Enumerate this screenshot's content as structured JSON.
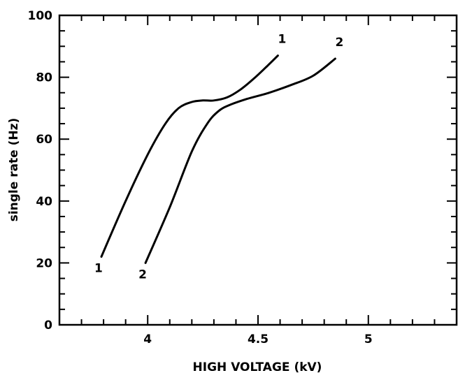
{
  "chart_data": {
    "type": "line",
    "title": "",
    "xlabel": "HIGH VOLTAGE (kV)",
    "ylabel": "single rate (Hz)",
    "xlim": [
      3.6,
      5.4
    ],
    "ylim": [
      0,
      100
    ],
    "x_ticks": [
      4,
      4.5,
      5
    ],
    "x_tick_labels": [
      "4",
      "4.5",
      "5"
    ],
    "y_ticks": [
      0,
      20,
      40,
      60,
      80,
      100
    ],
    "y_tick_labels": [
      "0",
      "20",
      "40",
      "60",
      "80",
      "100"
    ],
    "grid": false,
    "series": [
      {
        "name": "1",
        "x": [
          3.79,
          3.9,
          4.0,
          4.08,
          4.14,
          4.2,
          4.25,
          4.3,
          4.36,
          4.42,
          4.48,
          4.54,
          4.59
        ],
        "y": [
          22,
          40,
          55,
          65,
          70,
          72,
          72.5,
          72.5,
          73.5,
          76,
          79.5,
          83.5,
          87
        ],
        "color": "#000000"
      },
      {
        "name": "2",
        "x": [
          3.99,
          4.1,
          4.2,
          4.27,
          4.32,
          4.37,
          4.45,
          4.55,
          4.65,
          4.75,
          4.85
        ],
        "y": [
          20,
          38,
          56,
          65,
          69,
          71,
          73,
          75,
          77.5,
          80.5,
          86
        ],
        "color": "#000000"
      }
    ]
  }
}
